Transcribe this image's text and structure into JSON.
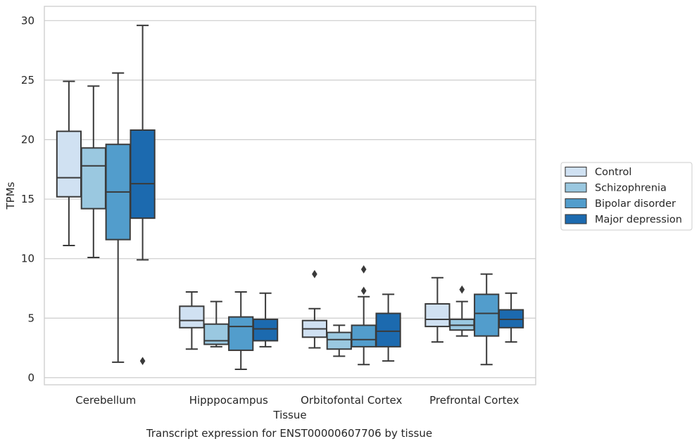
{
  "chart_data": {
    "type": "boxplot",
    "title": "",
    "caption": "Transcript expression for ENST00000607706 by tissue",
    "xlabel": "Tissue",
    "ylabel": "TPMs",
    "ylim": [
      -0.6,
      31.2
    ],
    "yticks": [
      0,
      5,
      10,
      15,
      20,
      25,
      30
    ],
    "categories": [
      "Cerebellum",
      "Hipppocampus",
      "Orbitofontal Cortex",
      "Prefrontal Cortex"
    ],
    "grid": "horizontal",
    "legend_position": "right",
    "series": [
      {
        "name": "Control",
        "color": "#d0e1f2",
        "boxes": [
          {
            "whislo": 11.1,
            "q1": 15.2,
            "med": 16.8,
            "q3": 20.7,
            "whishi": 24.9,
            "fliers": []
          },
          {
            "whislo": 2.4,
            "q1": 4.2,
            "med": 4.8,
            "q3": 6.0,
            "whishi": 7.2,
            "fliers": []
          },
          {
            "whislo": 2.5,
            "q1": 3.4,
            "med": 4.1,
            "q3": 4.8,
            "whishi": 5.8,
            "fliers": [
              8.7
            ]
          },
          {
            "whislo": 3.0,
            "q1": 4.3,
            "med": 4.9,
            "q3": 6.2,
            "whishi": 8.4,
            "fliers": []
          }
        ]
      },
      {
        "name": "Schizophrenia",
        "color": "#9ac8e0",
        "boxes": [
          {
            "whislo": 10.1,
            "q1": 14.2,
            "med": 17.8,
            "q3": 19.3,
            "whishi": 24.5,
            "fliers": []
          },
          {
            "whislo": 2.6,
            "q1": 2.8,
            "med": 3.1,
            "q3": 4.5,
            "whishi": 6.4,
            "fliers": []
          },
          {
            "whislo": 1.8,
            "q1": 2.4,
            "med": 3.2,
            "q3": 3.8,
            "whishi": 4.4,
            "fliers": []
          },
          {
            "whislo": 3.5,
            "q1": 4.0,
            "med": 4.4,
            "q3": 4.9,
            "whishi": 6.4,
            "fliers": [
              7.4
            ]
          }
        ]
      },
      {
        "name": "Bipolar disorder",
        "color": "#529dcc",
        "boxes": [
          {
            "whislo": 1.3,
            "q1": 11.6,
            "med": 15.6,
            "q3": 19.6,
            "whishi": 25.6,
            "fliers": []
          },
          {
            "whislo": 0.7,
            "q1": 2.3,
            "med": 4.3,
            "q3": 5.1,
            "whishi": 7.2,
            "fliers": []
          },
          {
            "whislo": 1.1,
            "q1": 2.6,
            "med": 3.2,
            "q3": 4.4,
            "whishi": 6.8,
            "fliers": [
              7.3,
              9.1
            ]
          },
          {
            "whislo": 1.1,
            "q1": 3.5,
            "med": 5.4,
            "q3": 7.0,
            "whishi": 8.7,
            "fliers": []
          }
        ]
      },
      {
        "name": "Major depression",
        "color": "#1c6aaf",
        "boxes": [
          {
            "whislo": 9.9,
            "q1": 13.4,
            "med": 16.3,
            "q3": 20.8,
            "whishi": 29.6,
            "fliers": [
              1.4
            ]
          },
          {
            "whislo": 2.6,
            "q1": 3.1,
            "med": 4.1,
            "q3": 4.9,
            "whishi": 7.1,
            "fliers": []
          },
          {
            "whislo": 1.4,
            "q1": 2.6,
            "med": 3.9,
            "q3": 5.4,
            "whishi": 7.0,
            "fliers": []
          },
          {
            "whislo": 3.0,
            "q1": 4.2,
            "med": 4.9,
            "q3": 5.7,
            "whishi": 7.1,
            "fliers": []
          }
        ]
      }
    ]
  }
}
